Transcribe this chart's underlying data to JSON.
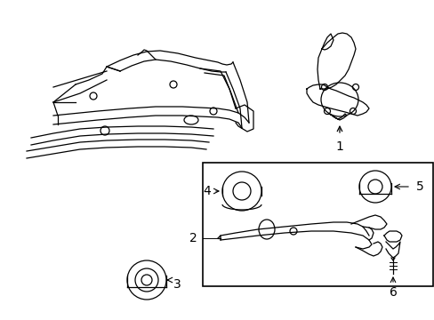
{
  "background_color": "#ffffff",
  "line_color": "#000000",
  "fig_width": 4.89,
  "fig_height": 3.6,
  "dpi": 100,
  "font_size": 9
}
